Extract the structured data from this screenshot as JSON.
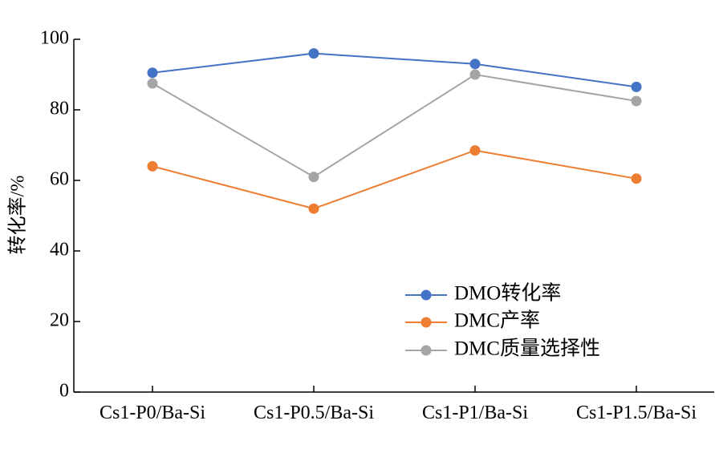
{
  "chart_data": {
    "type": "line",
    "ylabel": "转化率/%",
    "xlabel": "",
    "title": "",
    "ylim": [
      0,
      100
    ],
    "yticks": [
      0,
      20,
      40,
      60,
      80,
      100
    ],
    "categories": [
      "Cs1-P0/Ba-Si",
      "Cs1-P0.5/Ba-Si",
      "Cs1-P1/Ba-Si",
      "Cs1-P1.5/Ba-Si"
    ],
    "series": [
      {
        "name": "DMO转化率",
        "color": "#4472c4",
        "values": [
          90.5,
          96,
          93,
          86.5
        ]
      },
      {
        "name": "DMC产率",
        "color": "#ed7d31",
        "values": [
          64,
          52,
          68.5,
          60.5
        ]
      },
      {
        "name": "DMC质量选择性",
        "color": "#a5a5a5",
        "values": [
          87.5,
          61,
          90,
          82.5
        ]
      }
    ],
    "legend_position": "bottom-right",
    "grid": false
  }
}
